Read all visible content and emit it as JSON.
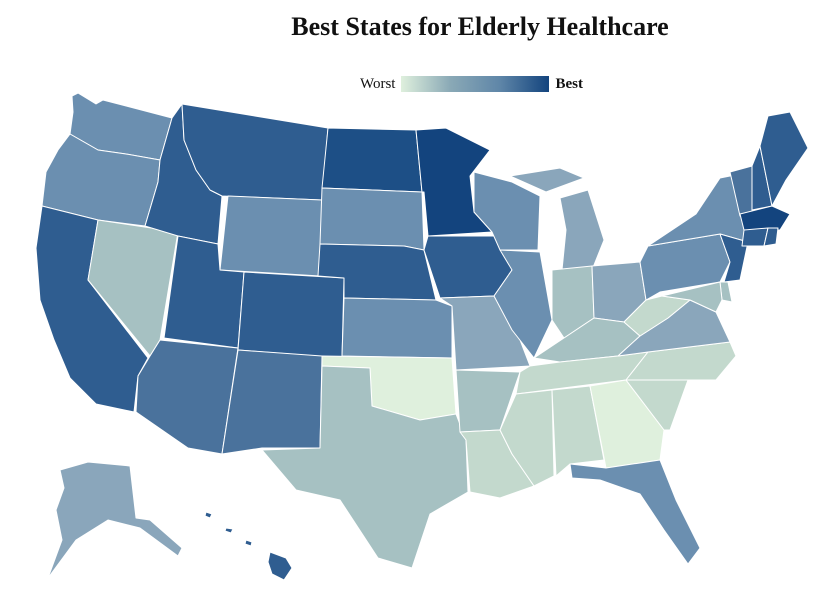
{
  "title": "Best States for Elderly Healthcare",
  "legend": {
    "low_label": "Worst",
    "high_label": "Best"
  },
  "colors": {
    "best": "#13447e",
    "dark": "#2f5d90",
    "mid_dark": "#4a729c",
    "mid": "#6b8fb0",
    "mid_light": "#8aa6bb",
    "light": "#a6c1c2",
    "pale": "#c3d9cd",
    "worst": "#dff0dd"
  },
  "states": {
    "WA": "mid",
    "OR": "mid",
    "CA": "dark",
    "NV": "light",
    "ID": "dark",
    "MT": "dark",
    "WY": "mid",
    "UT": "dark",
    "AZ": "mid_dark",
    "CO": "dark",
    "NM": "mid_dark",
    "ND": "best_ish",
    "SD": "mid",
    "NE": "dark",
    "KS": "mid",
    "OK": "worst",
    "TX": "light",
    "MN": "best",
    "IA": "dark",
    "MO": "mid_light",
    "AR": "light",
    "LA": "pale",
    "WI": "mid",
    "IL": "mid",
    "MI": "mid_light",
    "IN": "light",
    "OH": "mid_light",
    "KY": "light",
    "TN": "pale",
    "MS": "pale",
    "AL": "pale",
    "GA": "worst",
    "FL": "mid",
    "SC": "pale",
    "NC": "pale",
    "VA": "mid_light",
    "WV": "pale",
    "PA": "mid",
    "NY": "mid",
    "VT": "mid_dark",
    "NH": "dark",
    "ME": "dark",
    "MA": "best",
    "CT": "dark",
    "RI": "dark",
    "NJ": "dark",
    "DE": "light",
    "MD": "light",
    "AK": "mid_light",
    "HI": "dark"
  }
}
